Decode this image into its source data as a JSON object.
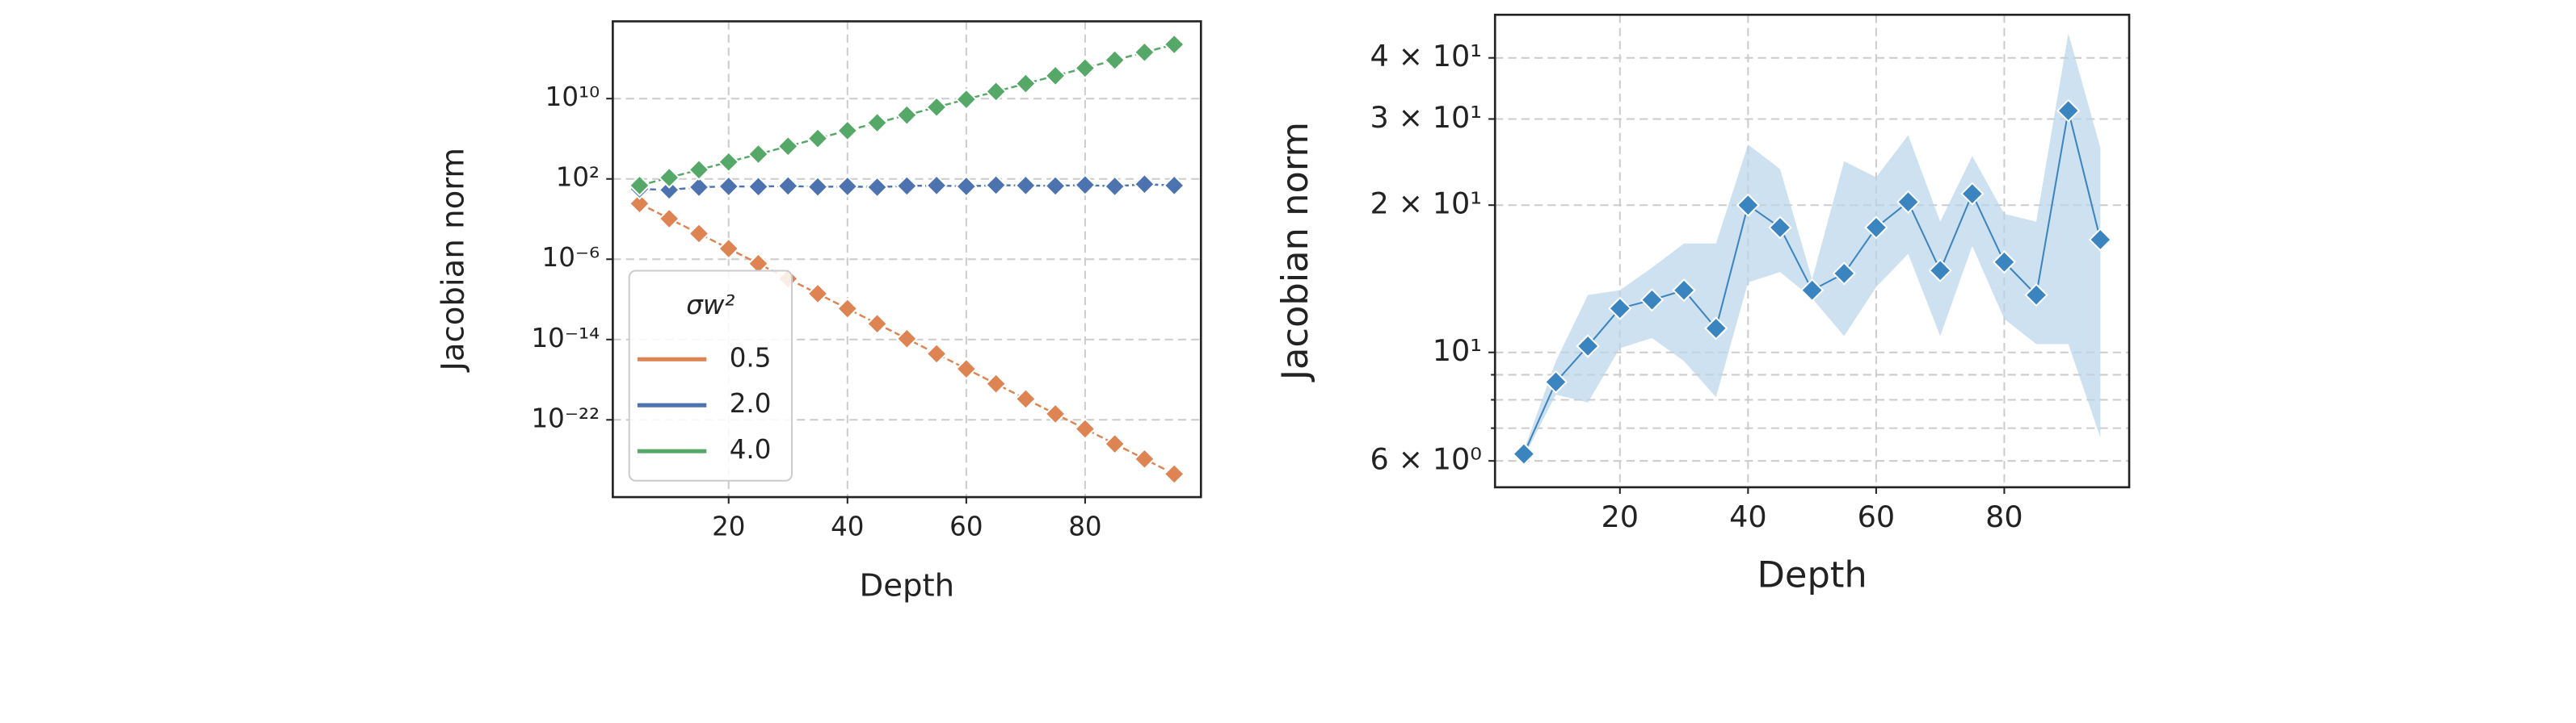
{
  "chart_data": [
    {
      "type": "line",
      "xlabel": "Depth",
      "ylabel": "Jacobian norm",
      "yscale": "log",
      "grid": true,
      "x": [
        5,
        10,
        15,
        20,
        25,
        30,
        35,
        40,
        45,
        50,
        55,
        60,
        65,
        70,
        75,
        80,
        85,
        90,
        95
      ],
      "xlim": [
        0.5,
        99.5
      ],
      "xticks": [
        20,
        40,
        60,
        80
      ],
      "ylim": [
        2e-30,
        5e+17
      ],
      "yticks": [
        {
          "value": 10000000000.0,
          "label": "10¹⁰"
        },
        {
          "value": 100.0,
          "label": "10²"
        },
        {
          "value": 1e-06,
          "label": "10⁻⁶"
        },
        {
          "value": 1e-14,
          "label": "10⁻¹⁴"
        },
        {
          "value": 1e-22,
          "label": "10⁻²²"
        }
      ],
      "legend_title": "σw²",
      "legend": "lower left",
      "series": [
        {
          "name": "0.5",
          "color": "#dd8452",
          "values": [
            0.35,
            0.011,
            0.00036,
            1.15e-05,
            3.6e-07,
            1.15e-08,
            3.7e-10,
            1.2e-11,
            3.7e-13,
            1.2e-14,
            3.8e-16,
            1.2e-17,
            3.9e-19,
            1.2e-20,
            3.9e-22,
            1.25e-23,
            4e-25,
            1.26e-26,
            4e-28
          ]
        },
        {
          "name": "2.0",
          "color": "#4c72b0",
          "values": [
            10,
            8,
            15,
            18,
            17,
            20,
            16,
            18,
            15,
            20,
            22,
            18,
            24,
            22,
            20,
            25,
            18,
            30,
            22
          ]
        },
        {
          "name": "4.0",
          "color": "#55a868",
          "values": [
            22,
            135,
            813,
            4900.0,
            29500.0,
            178000.0,
            1070000.0,
            6500000.0,
            39000000.0,
            230000000.0,
            1400000000.0,
            8500000000.0,
            51000000000.0,
            310000000000.0,
            1900000000000.0,
            11000000000000.0,
            68000000000000.0,
            410000000000000.0,
            2500000000000000.0
          ]
        }
      ]
    },
    {
      "type": "band_line",
      "xlabel": "Depth",
      "ylabel": "Jacobian norm",
      "yscale": "log",
      "grid": true,
      "x": [
        5,
        10,
        15,
        20,
        25,
        30,
        35,
        40,
        45,
        50,
        55,
        60,
        65,
        70,
        75,
        80,
        85,
        90,
        95
      ],
      "xlim": [
        0.5,
        99.5
      ],
      "xticks": [
        20,
        40,
        60,
        80
      ],
      "ylim": [
        5.3,
        49
      ],
      "yticks": [
        {
          "value": 6,
          "label": "6 × 10⁰"
        },
        {
          "value": 10,
          "label": "10¹"
        },
        {
          "value": 20,
          "label": "2 × 10¹"
        },
        {
          "value": 30,
          "label": "3 × 10¹"
        },
        {
          "value": 40,
          "label": "4 × 10¹"
        }
      ],
      "yminorticks": [
        7,
        8,
        9
      ],
      "series": [
        {
          "color": "#3a84bf",
          "band_color": "#b9d4ea",
          "values": [
            6.2,
            8.7,
            10.3,
            12.3,
            12.8,
            13.4,
            11.2,
            20,
            18,
            13.4,
            14.5,
            18,
            20.3,
            14.7,
            21.1,
            15.3,
            13.1,
            31.2,
            17.0
          ],
          "lower": [
            6.1,
            8.2,
            7.9,
            10.2,
            10.7,
            9.6,
            8.1,
            13.9,
            14.6,
            12.9,
            10.8,
            13.6,
            15.9,
            10.8,
            16.5,
            11.7,
            10.4,
            10.4,
            6.7
          ],
          "upper": [
            6.3,
            9.6,
            13.1,
            13.4,
            14.9,
            16.7,
            16.7,
            26.6,
            23.7,
            14.1,
            24.6,
            22.8,
            27.8,
            18.5,
            25.2,
            19.2,
            18.5,
            44.9,
            26.2
          ]
        }
      ]
    }
  ]
}
